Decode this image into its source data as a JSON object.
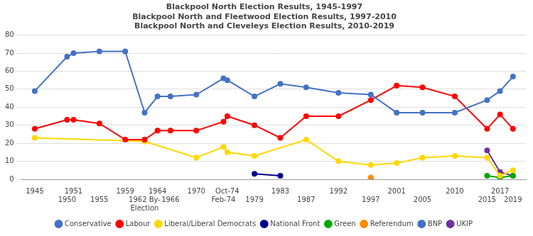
{
  "chart_data": {
    "type": "line",
    "title": "Blackpool North Election Results, 1945-1997\nBlackpool North and Fleetwood Election Results, 1997-2010\nBlackpool North and Cleveleys Election Results, 2010-2019",
    "xlim": [
      1943,
      2021
    ],
    "xticks": [
      1945,
      1950,
      1951,
      1955,
      1959,
      {
        "value": 1962,
        "label": "1962 By-\nElection"
      },
      1964,
      1966,
      1970,
      {
        "value": 1974.2,
        "label": "Feb-74"
      },
      {
        "value": 1974.8,
        "label": "Oct-74"
      },
      1979,
      1983,
      1987,
      1992,
      1997,
      2001,
      2005,
      2010,
      2015,
      2017,
      2019
    ],
    "ylim": [
      0,
      80
    ],
    "yticks": [
      0,
      10,
      20,
      30,
      40,
      50,
      60,
      70,
      80
    ],
    "grid": "y",
    "legend": "bottom",
    "marker": "circle",
    "series": [
      {
        "name": "Conservative",
        "color": "#4472C4",
        "line_style": "solid",
        "x": [
          1945,
          1950,
          1951,
          1955,
          1959,
          1962,
          1964,
          1966,
          1970,
          1974.2,
          1974.8,
          1979,
          1983,
          1987,
          1992,
          1997,
          2001,
          2005,
          2010,
          2015,
          2017,
          2019
        ],
        "values": [
          49,
          68,
          70,
          71,
          71,
          37,
          46,
          46,
          47,
          56,
          55,
          46,
          53,
          51,
          48,
          47,
          37,
          37,
          37,
          44,
          49,
          57
        ]
      },
      {
        "name": "Labour",
        "color": "#FF0000",
        "line_style": "solid",
        "x": [
          1945,
          1950,
          1951,
          1955,
          1959,
          1962,
          1964,
          1966,
          1970,
          1974.2,
          1974.8,
          1979,
          1983,
          1987,
          1992,
          1997,
          2001,
          2005,
          2010,
          2015,
          2017,
          2019
        ],
        "values": [
          28,
          33,
          33,
          31,
          22,
          22,
          27,
          27,
          27,
          32,
          35,
          30,
          23,
          35,
          35,
          44,
          52,
          51,
          46,
          28,
          36,
          28
        ]
      },
      {
        "name": "Liberal/Liberal Democrats",
        "color": "#FFD700",
        "line_style": "solid",
        "x": [
          1945,
          1962,
          1970,
          1974.2,
          1974.8,
          1979,
          1987,
          1992,
          1997,
          2001,
          2005,
          2010,
          2015,
          2017,
          2019
        ],
        "values": [
          23,
          21,
          12,
          18,
          15,
          13,
          22,
          10,
          8,
          9,
          12,
          13,
          12,
          2,
          5
        ]
      },
      {
        "name": "National Front",
        "color": "#00008B",
        "line_style": "solid",
        "x": [
          1979,
          1983
        ],
        "values": [
          3,
          2
        ]
      },
      {
        "name": "Green",
        "color": "#00AA00",
        "line_style": "solid",
        "x": [
          2015,
          2017,
          2019
        ],
        "values": [
          2,
          1,
          2
        ]
      },
      {
        "name": "Referendum",
        "color": "#FF8C00",
        "line_style": "none",
        "x": [
          1997
        ],
        "values": [
          1
        ]
      },
      {
        "name": "BNP",
        "color": "#4472C4",
        "line_style": "none",
        "x": [
          1997
        ],
        "values": [
          0.5
        ]
      },
      {
        "name": "UKIP",
        "color": "#7030A0",
        "line_style": "solid",
        "x": [
          2015,
          2017,
          2019
        ],
        "values": [
          16,
          4,
          2
        ]
      }
    ]
  }
}
